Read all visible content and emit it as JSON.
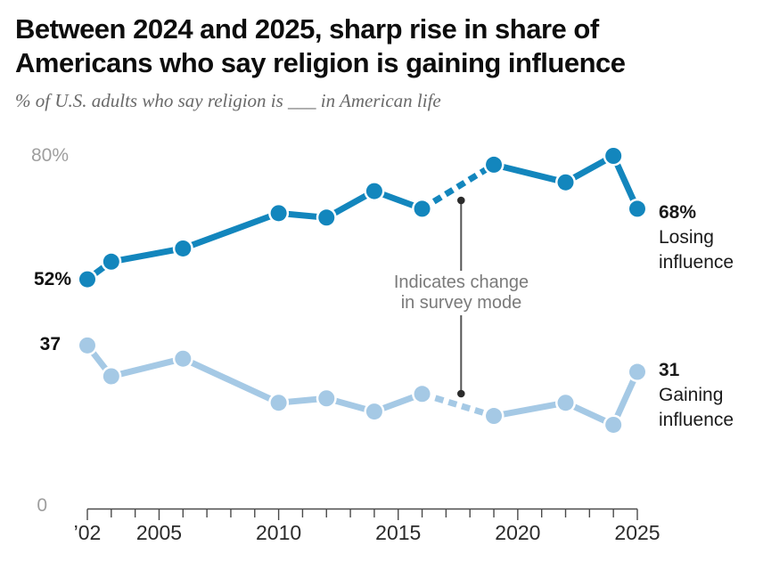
{
  "header": {
    "title_line1": "Between 2024 and 2025, sharp rise in share of",
    "title_line2": "Americans who say religion is gaining influence",
    "subtitle": "% of U.S. adults who say religion is ___ in American life"
  },
  "chart_data": {
    "type": "line",
    "x": [
      2002,
      2003,
      2006,
      2010,
      2012,
      2014,
      2016,
      2019,
      2022,
      2024,
      2025
    ],
    "series": [
      {
        "name": "Losing influence",
        "color": "#1386bd",
        "values": [
          52,
          56,
          59,
          67,
          66,
          72,
          68,
          78,
          74,
          80,
          68
        ]
      },
      {
        "name": "Gaining influence",
        "color": "#a5c9e5",
        "values": [
          37,
          30,
          34,
          24,
          25,
          22,
          26,
          21,
          24,
          19,
          31
        ]
      }
    ],
    "dashed_between_x": [
      2016,
      2019
    ],
    "xlim": [
      2002,
      2025
    ],
    "ylim": [
      0,
      80
    ],
    "x_tick_step": 1,
    "x_tick_labels": [
      "’02",
      "2005",
      "2010",
      "2015",
      "2020",
      "2025"
    ],
    "x_tick_label_years": [
      2002,
      2005,
      2010,
      2015,
      2020,
      2025
    ],
    "y_axis_labels": {
      "top": "80%",
      "bottom": "0"
    },
    "grid": false,
    "legend_position": "end-of-line-labels"
  },
  "labels": {
    "start_losing": "52%",
    "start_gaining": "37",
    "end_losing_value": "68%",
    "end_losing_line1": "Losing",
    "end_losing_line2": "influence",
    "end_gaining_value": "31",
    "end_gaining_line1": "Gaining",
    "end_gaining_line2": "influence"
  },
  "annotation": {
    "line1": "Indicates change",
    "line2": "in survey mode"
  },
  "colors": {
    "losing": "#1386bd",
    "gaining": "#a5c9e5",
    "axis": "#4a4a4a",
    "muted_text": "#9e9e9e",
    "annotation_text": "#7a7a7a",
    "annotation_line": "#555555",
    "annotation_dot": "#2b2b2b"
  }
}
